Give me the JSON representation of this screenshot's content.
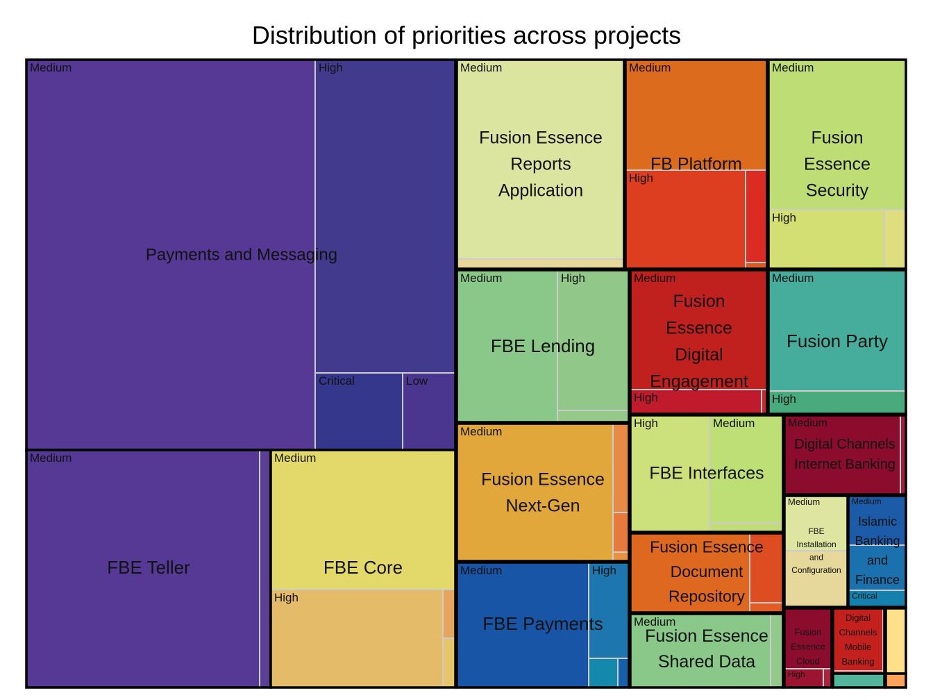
{
  "chart_data": {
    "type": "treemap",
    "title": "Distribution of priorities across projects",
    "groups": [
      {
        "name": "Payments and Messaging",
        "label_lines": [
          "Payments and Messaging"
        ],
        "children": [
          {
            "name": "Medium",
            "color": "#553994"
          },
          {
            "name": "High",
            "color": "#413a8d"
          },
          {
            "name": "Critical",
            "color": "#34378b"
          },
          {
            "name": "Low",
            "color": "#4a368f"
          }
        ]
      },
      {
        "name": "FBE Teller",
        "label_lines": [
          "FBE Teller"
        ],
        "children": [
          {
            "name": "Medium",
            "color": "#553994"
          },
          {
            "name": "",
            "color": "#5b3f97"
          }
        ]
      },
      {
        "name": "FBE Core",
        "label_lines": [
          "FBE Core"
        ],
        "children": [
          {
            "name": "Medium",
            "color": "#e3d96b"
          },
          {
            "name": "High",
            "color": "#e4bc69"
          },
          {
            "name": "",
            "color": "#e5a55e"
          },
          {
            "name": "",
            "color": "#e6c56a"
          }
        ]
      },
      {
        "name": "Fusion Essence Reports Application",
        "label_lines": [
          "Fusion Essence",
          "Reports",
          "Application"
        ],
        "children": [
          {
            "name": "Medium",
            "color": "#dbe5a0"
          },
          {
            "name": "",
            "color": "#e7d89a"
          }
        ]
      },
      {
        "name": "FB Platform",
        "label_lines": [
          "FB Platform"
        ],
        "children": [
          {
            "name": "Medium",
            "color": "#dd6b1d"
          },
          {
            "name": "High",
            "color": "#dd3e1f"
          },
          {
            "name": "",
            "color": "#dc2b22"
          },
          {
            "name": "",
            "color": "#de5a1e"
          }
        ]
      },
      {
        "name": "Fusion Essence Security",
        "label_lines": [
          "Fusion",
          "Essence",
          "Security"
        ],
        "children": [
          {
            "name": "Medium",
            "color": "#bede75"
          },
          {
            "name": "High",
            "color": "#d3df72"
          },
          {
            "name": "",
            "color": "#dede7e"
          }
        ]
      },
      {
        "name": "FBE Lending",
        "label_lines": [
          "FBE Lending"
        ],
        "children": [
          {
            "name": "Medium",
            "color": "#8ac889"
          },
          {
            "name": "High",
            "color": "#91c788"
          },
          {
            "name": "",
            "color": "#94c98a"
          }
        ]
      },
      {
        "name": "Fusion Essence Digital Engagement",
        "label_lines": [
          "Fusion",
          "Essence",
          "Digital",
          "Engagement"
        ],
        "children": [
          {
            "name": "Medium",
            "color": "#c0201e"
          },
          {
            "name": "High",
            "color": "#bf1b2c"
          },
          {
            "name": "",
            "color": "#c52a2f"
          }
        ]
      },
      {
        "name": "Fusion Party",
        "label_lines": [
          "Fusion Party"
        ],
        "children": [
          {
            "name": "Medium",
            "color": "#46ad9d"
          },
          {
            "name": "High",
            "color": "#49ab7d"
          }
        ]
      },
      {
        "name": "Fusion Essence Next-Gen",
        "label_lines": [
          "Fusion Essence",
          "Next-Gen"
        ],
        "children": [
          {
            "name": "Medium",
            "color": "#e2a73a"
          },
          {
            "name": "",
            "color": "#e68a45"
          },
          {
            "name": "",
            "color": "#e67a3c"
          },
          {
            "name": "",
            "color": "#e8923f"
          }
        ]
      },
      {
        "name": "FBE Payments",
        "label_lines": [
          "FBE Payments"
        ],
        "children": [
          {
            "name": "Medium",
            "color": "#1855a6"
          },
          {
            "name": "High",
            "color": "#1d77ae"
          },
          {
            "name": "",
            "color": "#1489ab"
          },
          {
            "name": "",
            "color": "#1560a8"
          }
        ]
      },
      {
        "name": "FBE Interfaces",
        "label_lines": [
          "FBE Interfaces"
        ],
        "children": [
          {
            "name": "High",
            "color": "#cce17c"
          },
          {
            "name": "Medium",
            "color": "#bede76"
          },
          {
            "name": "",
            "color": "#c2dc79"
          }
        ]
      },
      {
        "name": "Digital Channels Internet Banking",
        "label_lines": [
          "Digital Channels",
          "Internet Banking"
        ],
        "children": [
          {
            "name": "Medium",
            "color": "#8b0c2d"
          },
          {
            "name": "",
            "color": "#a31f3d"
          }
        ]
      },
      {
        "name": "Fusion Essence Document Repository",
        "label_lines": [
          "Fusion Essence",
          "Document",
          "Repository"
        ],
        "children": [
          {
            "name": "",
            "color": "#de681f"
          },
          {
            "name": "",
            "color": "#dd4d21"
          },
          {
            "name": "",
            "color": "#e25c25"
          }
        ]
      },
      {
        "name": "FBE Installation and Configuration",
        "label_lines": [
          "FBE",
          "Installation",
          "and",
          "Configuration"
        ],
        "children": [
          {
            "name": "Medium",
            "color": "#dde5a0"
          },
          {
            "name": "",
            "color": "#e6d89b"
          }
        ]
      },
      {
        "name": "Islamic Banking and Finance",
        "label_lines": [
          "Islamic",
          "Banking",
          "and",
          "Finance"
        ],
        "children": [
          {
            "name": "Medium",
            "color": "#1c5ba7"
          },
          {
            "name": "",
            "color": "#1b71ae"
          },
          {
            "name": "Critical",
            "color": "#1580ad"
          }
        ]
      },
      {
        "name": "Fusion Essence Shared Data",
        "label_lines": [
          "Fusion Essence",
          "Shared Data"
        ],
        "children": [
          {
            "name": "Medium",
            "color": "#8ac889"
          },
          {
            "name": "",
            "color": "#94c98c"
          }
        ]
      },
      {
        "name": "Fusion Essence Cloud",
        "label_lines": [
          "Fusion",
          "Essence",
          "Cloud"
        ],
        "children": [
          {
            "name": "",
            "color": "#8b0c2d"
          },
          {
            "name": "High",
            "color": "#9c1530"
          },
          {
            "name": "",
            "color": "#a82440"
          }
        ]
      },
      {
        "name": "Digital Channels Mobile Banking",
        "label_lines": [
          "Digital",
          "Channels",
          "Mobile",
          "Banking"
        ],
        "children": [
          {
            "name": "",
            "color": "#c4211e"
          },
          {
            "name": "",
            "color": "#c8262a"
          }
        ]
      },
      {
        "name": "",
        "label_lines": [],
        "children": [
          {
            "name": "",
            "color": "#52b49b"
          }
        ]
      },
      {
        "name": "",
        "label_lines": [],
        "children": [
          {
            "name": "",
            "color": "#fee08b"
          }
        ]
      },
      {
        "name": "",
        "label_lines": [],
        "children": [
          {
            "name": "",
            "color": "#fba35a"
          }
        ]
      }
    ]
  }
}
